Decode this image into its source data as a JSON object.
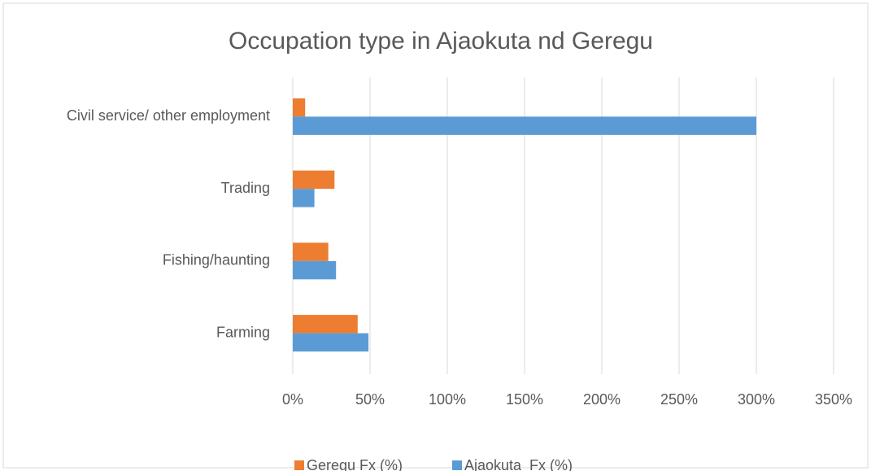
{
  "chart_data": {
    "type": "hbar",
    "title": "Occupation type in Ajaokuta nd Geregu",
    "categories": [
      "Civil service/ other employment",
      "Trading",
      "Fishing/haunting ",
      "Farming"
    ],
    "series": [
      {
        "name": "Geregu Fx (%)",
        "color": "#ed7d31",
        "values": [
          8,
          27,
          23,
          42
        ]
      },
      {
        "name": "Ajaokuta  Fx (%)",
        "color": "#5b9bd5",
        "values": [
          300,
          14,
          28,
          49
        ]
      }
    ],
    "xlim": [
      0,
      350
    ],
    "xticks": [
      {
        "value": 0,
        "label": "0%"
      },
      {
        "value": 50,
        "label": "50%"
      },
      {
        "value": 100,
        "label": "100%"
      },
      {
        "value": 150,
        "label": "150%"
      },
      {
        "value": 200,
        "label": "200%"
      },
      {
        "value": 250,
        "label": "250%"
      },
      {
        "value": 300,
        "label": "300%"
      },
      {
        "value": 350,
        "label": "350%"
      }
    ],
    "grid": true,
    "legend": "bottom"
  }
}
